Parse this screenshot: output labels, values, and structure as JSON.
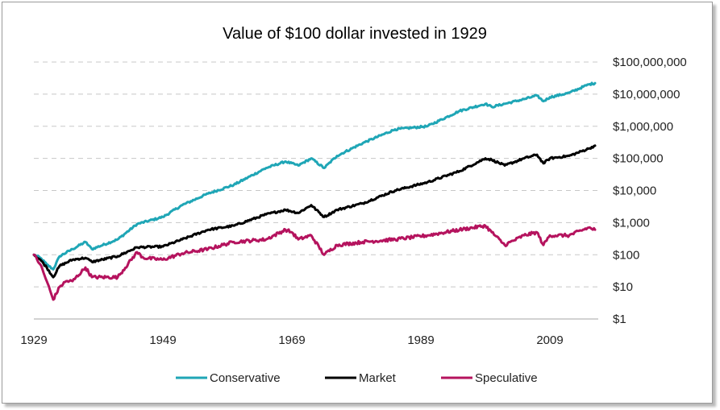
{
  "chart_data": {
    "type": "line",
    "title": "Value of $100 dollar invested in 1929",
    "xlabel": "",
    "ylabel": "",
    "y_scale": "log",
    "ylim": [
      1,
      100000000
    ],
    "xlim": [
      1929,
      2016
    ],
    "grid": "horizontal-dashed",
    "legend_position": "bottom",
    "x_tick_labels": [
      "1929",
      "1949",
      "1969",
      "1989",
      "2009"
    ],
    "x_ticks": [
      1929,
      1949,
      1969,
      1989,
      2009
    ],
    "y_tick_labels": [
      "$1",
      "$10",
      "$100",
      "$1,000",
      "$10,000",
      "$100,000",
      "$1,000,000",
      "$10,000,000",
      "$100,000,000"
    ],
    "y_ticks": [
      1,
      10,
      100,
      1000,
      10000,
      100000,
      1000000,
      10000000,
      100000000
    ],
    "series": [
      {
        "name": "Conservative",
        "color": "#1fa6b6",
        "x": [
          1929,
          1930,
          1931,
          1932,
          1933,
          1935,
          1937,
          1938,
          1942,
          1945,
          1949,
          1952,
          1956,
          1960,
          1965,
          1968,
          1970,
          1972,
          1974,
          1976,
          1980,
          1985,
          1990,
          1995,
          1999,
          2000,
          2002,
          2005,
          2007,
          2008,
          2009,
          2012,
          2015,
          2016
        ],
        "y": [
          100,
          80,
          50,
          35,
          90,
          150,
          250,
          150,
          300,
          900,
          1500,
          3500,
          8000,
          15000,
          50000,
          80000,
          60000,
          100000,
          50000,
          120000,
          300000,
          800000,
          1000000,
          3000000,
          5000000,
          4000000,
          5000000,
          7000000,
          9000000,
          6000000,
          8000000,
          11000000,
          20000000,
          22000000
        ]
      },
      {
        "name": "Market",
        "color": "#000000",
        "x": [
          1929,
          1930,
          1931,
          1932,
          1933,
          1935,
          1937,
          1938,
          1942,
          1945,
          1949,
          1952,
          1956,
          1960,
          1965,
          1968,
          1970,
          1972,
          1974,
          1976,
          1980,
          1985,
          1990,
          1995,
          1999,
          2000,
          2002,
          2005,
          2007,
          2008,
          2009,
          2012,
          2015,
          2016
        ],
        "y": [
          100,
          70,
          40,
          20,
          45,
          70,
          80,
          60,
          90,
          170,
          180,
          300,
          600,
          800,
          1800,
          2500,
          2000,
          3500,
          1500,
          2500,
          4000,
          10000,
          18000,
          40000,
          100000,
          90000,
          60000,
          100000,
          130000,
          70000,
          100000,
          120000,
          200000,
          250000
        ]
      },
      {
        "name": "Speculative",
        "color": "#b5135e",
        "x": [
          1929,
          1930,
          1931,
          1932,
          1933,
          1934,
          1935,
          1937,
          1938,
          1942,
          1945,
          1946,
          1949,
          1952,
          1956,
          1960,
          1965,
          1968,
          1969,
          1970,
          1972,
          1974,
          1976,
          1980,
          1985,
          1990,
          1995,
          1999,
          2000,
          2002,
          2005,
          2007,
          2008,
          2009,
          2012,
          2015,
          2016
        ],
        "y": [
          100,
          50,
          15,
          4,
          10,
          15,
          15,
          40,
          20,
          20,
          120,
          80,
          70,
          110,
          150,
          250,
          300,
          600,
          500,
          300,
          400,
          100,
          200,
          250,
          300,
          400,
          600,
          800,
          500,
          200,
          400,
          500,
          200,
          400,
          400,
          700,
          600
        ]
      }
    ]
  }
}
